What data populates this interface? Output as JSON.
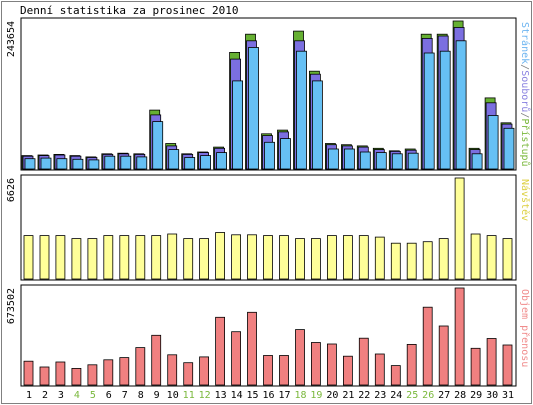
{
  "chart_data": {
    "type": "bar",
    "title": "Denní statistika za prosinec 2010",
    "categories": [
      "1",
      "2",
      "3",
      "4",
      "5",
      "6",
      "7",
      "8",
      "9",
      "10",
      "11",
      "12",
      "13",
      "14",
      "15",
      "16",
      "17",
      "18",
      "19",
      "20",
      "21",
      "22",
      "23",
      "24",
      "25",
      "26",
      "27",
      "28",
      "29",
      "30",
      "31"
    ],
    "weekend_days": [
      "4",
      "5",
      "11",
      "12",
      "18",
      "19",
      "25",
      "26"
    ],
    "panels": [
      {
        "name": "traffic",
        "ymax_label": "243654",
        "ylim": [
          0,
          243654
        ],
        "side_labels": [
          {
            "text": "Stránek",
            "color": "#6cb4f0"
          },
          {
            "text": "/",
            "color": "#808080"
          },
          {
            "text": "Souborů",
            "color": "#8a82e0"
          },
          {
            "text": "/",
            "color": "#808080"
          },
          {
            "text": "Přístupů",
            "color": "#7ab83c"
          }
        ],
        "series": [
          {
            "name": "Přístupů",
            "color": "#66b032",
            "values": [
              22000,
              23000,
              24000,
              22000,
              20000,
              25000,
              26000,
              25000,
              97000,
              42000,
              25000,
              28000,
              36000,
              192000,
              222000,
              58000,
              64000,
              227000,
              161000,
              42000,
              40000,
              38000,
              34000,
              30000,
              33000,
              222000,
              222000,
              243654,
              34000,
              117000,
              76000
            ]
          },
          {
            "name": "Souborů",
            "color": "#7b6fe0",
            "values": [
              21000,
              22000,
              23000,
              21000,
              19000,
              24000,
              25000,
              24000,
              89000,
              38000,
              24000,
              27000,
              34000,
              181000,
              211000,
              55000,
              61000,
              211000,
              156000,
              40000,
              38000,
              36000,
              32000,
              29000,
              31000,
              215000,
              219000,
              233000,
              32000,
              109000,
              74000
            ]
          },
          {
            "name": "Stránek",
            "color": "#66c0f4",
            "values": [
              17000,
              18000,
              17000,
              16000,
              15000,
              21000,
              21000,
              20000,
              78000,
              32000,
              19000,
              22000,
              27000,
              145000,
              200000,
              44000,
              50000,
              194000,
              145000,
              33000,
              33000,
              28000,
              27000,
              25000,
              26000,
              191000,
              194000,
              211000,
              25000,
              88000,
              67000
            ]
          }
        ]
      },
      {
        "name": "visits",
        "ymax_label": "6626",
        "ylim": [
          0,
          6626
        ],
        "side_labels": [
          {
            "text": "Návštěv",
            "color": "#ddd040"
          }
        ],
        "series": [
          {
            "name": "Návštěv",
            "color": "#ffff99",
            "values": [
              2850,
              2850,
              2850,
              2650,
              2650,
              2850,
              2850,
              2850,
              2850,
              2950,
              2650,
              2650,
              3050,
              2900,
              2900,
              2850,
              2850,
              2650,
              2650,
              2850,
              2850,
              2850,
              2750,
              2350,
              2350,
              2450,
              2650,
              6626,
              2950,
              2850,
              2650
            ]
          }
        ]
      },
      {
        "name": "volume",
        "ymax_label": "673502",
        "ylim": [
          0,
          673502
        ],
        "side_labels": [
          {
            "text": "Objem přenosu",
            "color": "#f08c8c"
          }
        ],
        "series": [
          {
            "name": "Objem přenosu",
            "color": "#f08080",
            "values": [
              165000,
              125000,
              160000,
              115000,
              140000,
              175000,
              190000,
              260000,
              345000,
              210000,
              155000,
              195000,
              470000,
              370000,
              505000,
              205000,
              205000,
              385000,
              295000,
              285000,
              200000,
              325000,
              215000,
              135000,
              282000,
              540000,
              410000,
              673502,
              255000,
              323000,
              278000
            ]
          }
        ]
      }
    ]
  }
}
